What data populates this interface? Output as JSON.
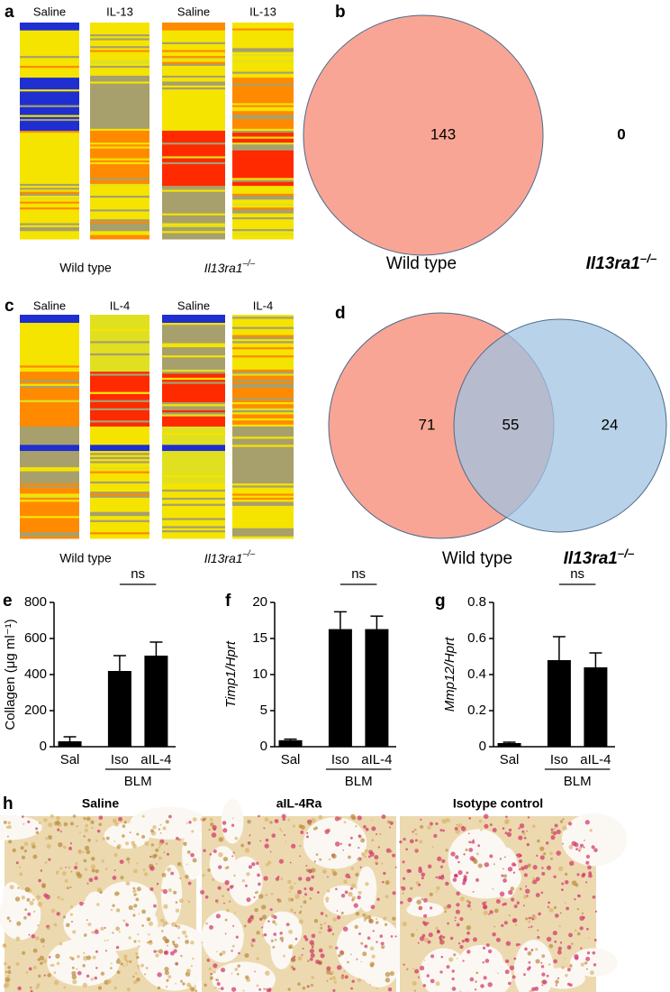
{
  "panel_labels": [
    "a",
    "b",
    "c",
    "d",
    "e",
    "f",
    "g",
    "h"
  ],
  "heatmaps": [
    {
      "columns": [
        "Saline",
        "IL-13",
        "Saline",
        "IL-13"
      ],
      "groups": [
        "Wild type",
        {
          "gene": "Il13ra1",
          "sup": "–/–"
        }
      ]
    },
    {
      "columns": [
        "Saline",
        "IL-4",
        "Saline",
        "IL-4"
      ],
      "groups": [
        "Wild type",
        {
          "gene": "Il13ra1",
          "sup": "–/–"
        }
      ]
    }
  ],
  "venns": [
    {
      "sets": [
        "Wild type",
        {
          "gene": "Il13ra1",
          "sup": "–/–"
        }
      ],
      "counts": [
        143,
        0
      ]
    },
    {
      "sets": [
        "Wild type",
        {
          "gene": "Il13ra1",
          "sup": "–/–"
        }
      ],
      "counts": [
        71,
        55,
        24
      ]
    }
  ],
  "chart_data": [
    {
      "type": "bar",
      "ylabel": "Collagen (μg ml⁻¹)",
      "categories": [
        "Sal",
        "Iso",
        "aIL-4"
      ],
      "values": [
        30,
        420,
        505
      ],
      "errors": [
        25,
        85,
        75
      ],
      "group_label": "BLM",
      "annotation": "ns",
      "ylim": [
        0,
        800
      ],
      "yticks": [
        0,
        200,
        400,
        600,
        800
      ],
      "color": "#000000"
    },
    {
      "type": "bar",
      "ylabel": "Timp1/Hprt",
      "categories": [
        "Sal",
        "Iso",
        "aIL-4"
      ],
      "values": [
        0.9,
        16.3,
        16.3
      ],
      "errors": [
        0.15,
        2.4,
        1.8
      ],
      "group_label": "BLM",
      "annotation": "ns",
      "ylim": [
        0,
        20
      ],
      "yticks": [
        0,
        5,
        10,
        15,
        20
      ],
      "color": "#000000"
    },
    {
      "type": "bar",
      "ylabel": "Mmp12/Hprt",
      "categories": [
        "Sal",
        "Iso",
        "aIL-4"
      ],
      "values": [
        0.02,
        0.48,
        0.44
      ],
      "errors": [
        0.005,
        0.13,
        0.08
      ],
      "group_label": "BLM",
      "annotation": "ns",
      "ylim": [
        0,
        0.8
      ],
      "yticks": [
        0,
        0.2,
        0.4,
        0.6,
        0.8
      ],
      "color": "#000000"
    }
  ],
  "histology": {
    "labels": [
      "Saline",
      "aIL-4Ra",
      "Isotype control"
    ]
  }
}
